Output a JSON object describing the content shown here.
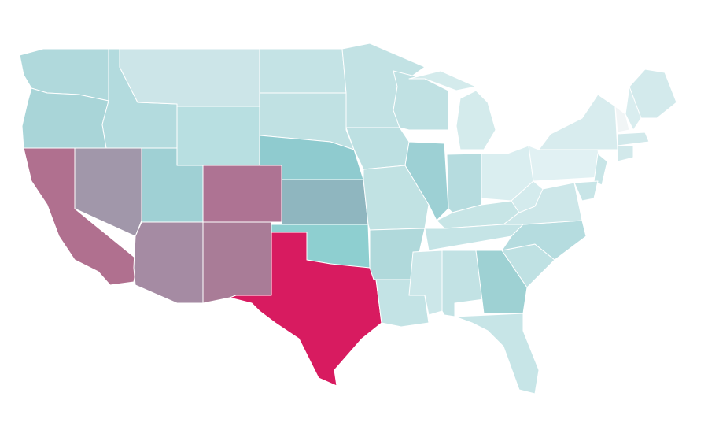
{
  "map": {
    "region_colors": [
      "#b0d9dc",
      "#a9d5d8",
      "#b0708f",
      "#b3dbde",
      "#a197aa",
      "#cce5e8",
      "#b8dfe1",
      "#9fd0d4",
      "#a58ba3",
      "#ae7393",
      "#a97c97",
      "#c4e3e5",
      "#c0e1e3",
      "#8fcbcf",
      "#8fb6bf",
      "#8ecfd0",
      "#d81b60",
      "#c2e2e4",
      "#bde0e2",
      "#c1e2e3",
      "#b0d9db",
      "#c3e3e5",
      "#c0e1e3",
      "#9dd0d4",
      "#d4ebec",
      "#d4ebec",
      "#b6dcdf",
      "#daeef0",
      "#c7e5e6",
      "#c5e4e6",
      "#cce7e9",
      "#c2e2e4",
      "#9ed1d3",
      "#c7e5e7",
      "#bfe1e3",
      "#b5dcdf",
      "#cde7e9",
      "#d4ebed",
      "#e1f1f3",
      "#d8ecee",
      "#d3eaec",
      "#d9edef",
      "#f1f5f6",
      "#d2e9eb",
      "#d2e9eb",
      "#c8e5e7",
      "#c8e5e7"
    ]
  }
}
